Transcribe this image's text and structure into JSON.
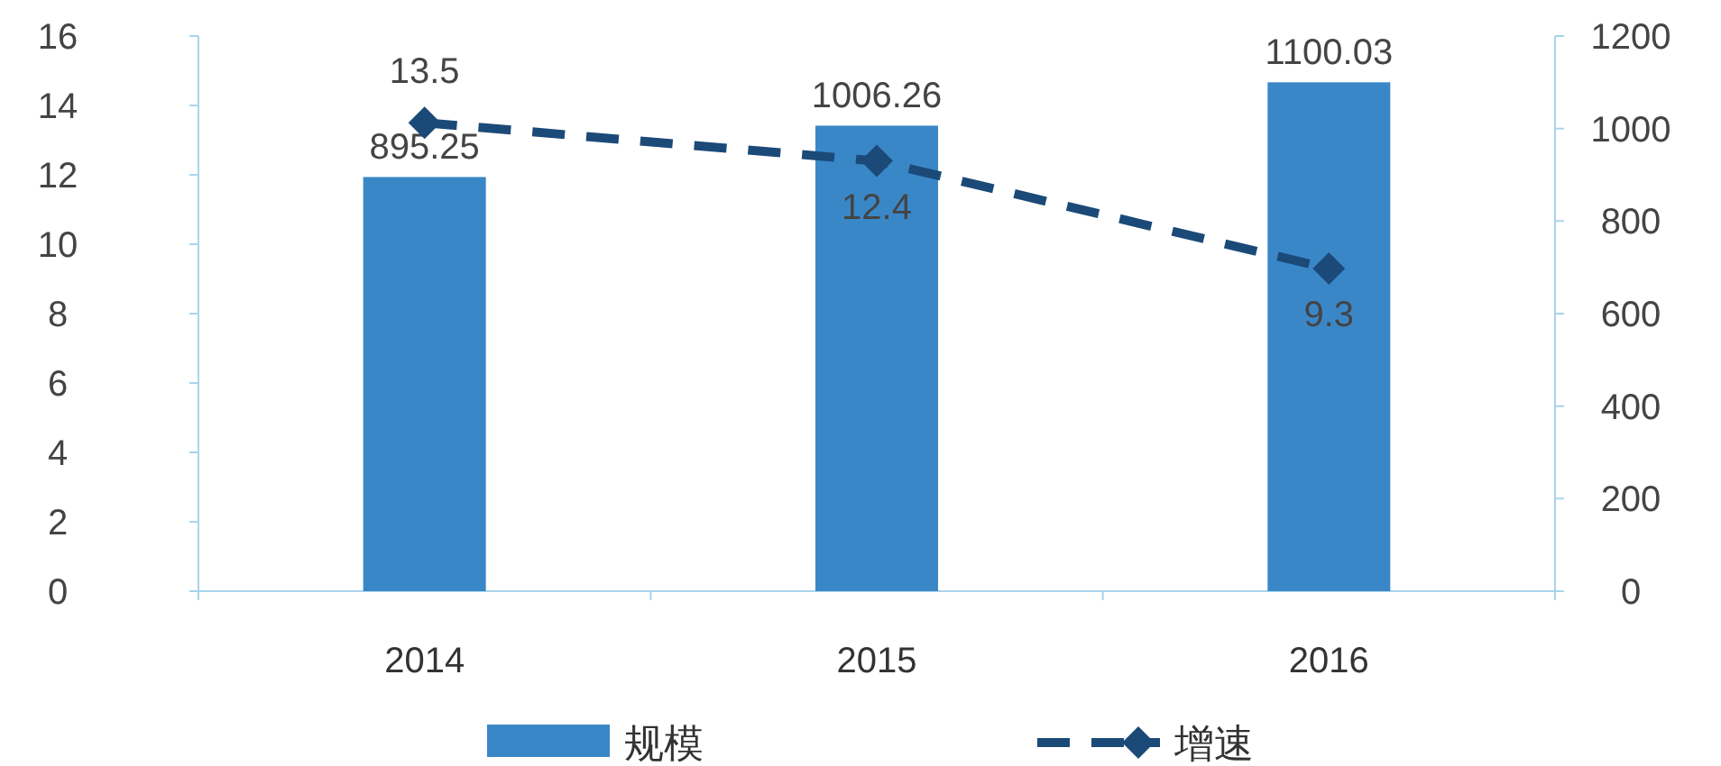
{
  "chart_data": {
    "type": "bar",
    "categories": [
      "2014",
      "2015",
      "2016"
    ],
    "series": [
      {
        "name": "规模",
        "axis": "y2",
        "color": "#3a87c8",
        "values": [
          895.25,
          1006.26,
          1100.03
        ]
      },
      {
        "name": "增速",
        "type": "line",
        "color": "#1b4a78",
        "values": [
          13.5,
          12.4,
          9.3
        ],
        "marker": "diamond",
        "line_style": "dashed"
      }
    ],
    "ylim": [
      0,
      16
    ],
    "yticks": [
      0,
      2,
      4,
      6,
      8,
      10,
      12,
      14,
      16
    ],
    "y2lim": [
      0,
      1200
    ],
    "y2ticks": [
      0,
      200,
      400,
      600,
      800,
      1000,
      1200
    ],
    "data_labels": true,
    "legend": "bottom",
    "grid": false
  }
}
